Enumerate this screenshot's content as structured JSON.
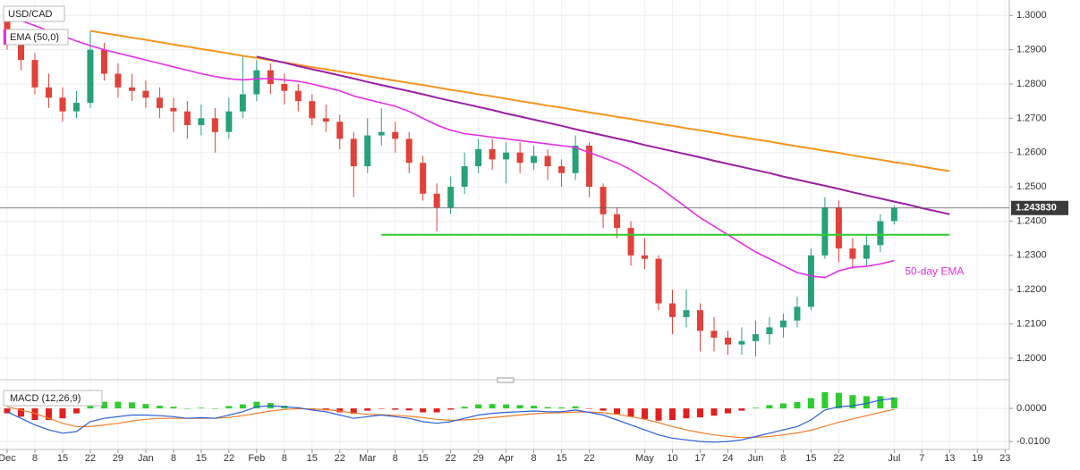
{
  "chart_data": {
    "type": "candlestick",
    "title": "USD/CAD",
    "categories": [
      "Dec",
      null,
      "8",
      null,
      "15",
      null,
      "22",
      null,
      "29",
      null,
      "Jan",
      null,
      "8",
      null,
      "15",
      null,
      "22",
      null,
      "Feb",
      null,
      "8",
      null,
      "15",
      null,
      "22",
      null,
      "Mar",
      null,
      "8",
      null,
      "15",
      null,
      "22",
      null,
      "29",
      null,
      "Apr",
      null,
      "8",
      null,
      "15",
      null,
      "22",
      null,
      null,
      null,
      "May",
      null,
      "10",
      null,
      "17",
      null,
      "24",
      null,
      "Jun",
      null,
      "8",
      null,
      "15",
      null,
      "22",
      null,
      null,
      null,
      "Jul",
      null,
      "7",
      null,
      "13",
      null,
      "19",
      null,
      "23",
      null
    ],
    "open": [
      1.299,
      1.292,
      1.287,
      1.279,
      1.276,
      1.272,
      1.2745,
      1.29,
      1.283,
      1.279,
      1.278,
      1.276,
      1.273,
      1.272,
      1.268,
      1.27,
      1.266,
      1.272,
      1.277,
      1.284,
      1.28,
      1.278,
      1.275,
      1.27,
      1.269,
      1.264,
      1.256,
      1.265,
      1.266,
      1.264,
      1.257,
      1.248,
      1.244,
      1.25,
      1.256,
      1.261,
      1.258,
      1.26,
      1.257,
      1.259,
      1.256,
      1.254,
      1.262,
      1.25,
      1.242,
      1.238,
      1.23,
      1.229,
      1.216,
      1.212,
      1.214,
      1.208,
      1.206,
      1.204,
      1.205,
      1.207,
      1.209,
      1.211,
      1.215,
      1.23,
      1.244,
      1.232,
      1.229,
      1.233,
      1.24,
      null,
      null,
      null,
      null,
      null,
      null,
      null,
      null,
      null
    ],
    "high": [
      1.3,
      1.296,
      1.289,
      1.283,
      1.279,
      1.278,
      1.2955,
      1.292,
      1.286,
      1.283,
      1.281,
      1.279,
      1.276,
      1.275,
      1.274,
      1.273,
      1.276,
      1.288,
      1.287,
      1.286,
      1.283,
      1.28,
      1.277,
      1.274,
      1.271,
      1.266,
      1.27,
      1.273,
      1.269,
      1.266,
      1.259,
      1.251,
      1.253,
      1.26,
      1.264,
      1.264,
      1.263,
      1.263,
      1.262,
      1.261,
      1.258,
      1.265,
      1.263,
      1.251,
      1.244,
      1.24,
      1.235,
      1.23,
      1.22,
      1.22,
      1.216,
      1.212,
      1.208,
      1.209,
      1.211,
      1.212,
      1.213,
      1.218,
      1.232,
      1.247,
      1.246,
      1.235,
      1.236,
      1.242,
      1.2445,
      null,
      null,
      null,
      null,
      null,
      null,
      null,
      null,
      null
    ],
    "low": [
      1.29,
      1.284,
      1.277,
      1.273,
      1.269,
      1.27,
      1.273,
      1.281,
      1.276,
      1.275,
      1.273,
      1.27,
      1.266,
      1.264,
      1.265,
      1.26,
      1.264,
      1.27,
      1.275,
      1.277,
      1.274,
      1.272,
      1.268,
      1.266,
      1.261,
      1.247,
      1.254,
      1.262,
      1.26,
      1.254,
      1.246,
      1.237,
      1.242,
      1.248,
      1.254,
      1.255,
      1.251,
      1.254,
      1.255,
      1.252,
      1.25,
      1.252,
      1.247,
      1.238,
      1.235,
      1.227,
      1.226,
      1.214,
      1.207,
      1.209,
      1.202,
      1.202,
      1.201,
      1.201,
      1.2005,
      1.204,
      1.206,
      1.209,
      1.214,
      1.229,
      1.228,
      1.226,
      1.227,
      1.231,
      1.239,
      null,
      null,
      null,
      null,
      null,
      null,
      null,
      null,
      null
    ],
    "close": [
      1.292,
      1.287,
      1.279,
      1.276,
      1.272,
      1.2745,
      1.29,
      1.283,
      1.279,
      1.278,
      1.276,
      1.273,
      1.272,
      1.268,
      1.27,
      1.266,
      1.272,
      1.277,
      1.284,
      1.28,
      1.278,
      1.275,
      1.27,
      1.269,
      1.264,
      1.256,
      1.265,
      1.266,
      1.264,
      1.257,
      1.248,
      1.244,
      1.25,
      1.256,
      1.261,
      1.258,
      1.26,
      1.257,
      1.259,
      1.256,
      1.254,
      1.262,
      1.25,
      1.242,
      1.238,
      1.23,
      1.229,
      1.216,
      1.212,
      1.214,
      1.208,
      1.206,
      1.204,
      1.205,
      1.207,
      1.209,
      1.211,
      1.215,
      1.23,
      1.244,
      1.232,
      1.229,
      1.233,
      1.24,
      1.24383,
      null,
      null,
      null,
      null,
      null,
      null,
      null,
      null,
      null
    ],
    "up_color": "#27a17b",
    "down_color": "#e0413a",
    "last_price_label": "1.243830",
    "ylim": [
      1.1945,
      1.3045
    ],
    "yticks": [
      {
        "value": 1.3,
        "label": "1.3000"
      },
      {
        "value": 1.29,
        "label": "1.2900"
      },
      {
        "value": 1.28,
        "label": "1.2800"
      },
      {
        "value": 1.27,
        "label": "1.2700"
      },
      {
        "value": 1.26,
        "label": "1.2600"
      },
      {
        "value": 1.25,
        "label": "1.2500"
      },
      {
        "value": 1.24,
        "label": "1.2400"
      },
      {
        "value": 1.23,
        "label": "1.2300"
      },
      {
        "value": 1.22,
        "label": "1.2200"
      },
      {
        "value": 1.21,
        "label": "1.2100"
      },
      {
        "value": 1.2,
        "label": "1.2000"
      }
    ],
    "grid": true,
    "series": [
      {
        "name": "EMA (50,0)",
        "color": "#e62ee6",
        "values": [
          1.3,
          1.2985,
          1.297,
          1.2955,
          1.294,
          1.2925,
          1.2912,
          1.29,
          1.289,
          1.288,
          1.287,
          1.286,
          1.285,
          1.284,
          1.283,
          1.2822,
          1.2815,
          1.2812,
          1.2815,
          1.2816,
          1.2812,
          1.2808,
          1.28,
          1.279,
          1.278,
          1.2765,
          1.2755,
          1.2745,
          1.2735,
          1.272,
          1.27,
          1.268,
          1.2665,
          1.2655,
          1.265,
          1.2645,
          1.264,
          1.2635,
          1.263,
          1.2625,
          1.262,
          1.2615,
          1.26,
          1.2585,
          1.257,
          1.255,
          1.2525,
          1.25,
          1.247,
          1.244,
          1.241,
          1.2385,
          1.236,
          1.2335,
          1.231,
          1.229,
          1.227,
          1.225,
          1.224,
          1.2235,
          1.2255,
          1.2265,
          1.2268,
          1.2275,
          1.2285,
          null,
          null,
          null,
          null,
          null,
          null,
          null,
          null,
          null
        ]
      }
    ],
    "annotation": "50-day EMA",
    "lines": [
      {
        "color": "#f7941d",
        "values": [
          null,
          null,
          null,
          null,
          null,
          null,
          1.2955,
          1.2948,
          1.2942,
          1.2935,
          1.2929,
          1.2922,
          1.2915,
          1.2909,
          1.2902,
          1.2896,
          1.2889,
          1.2882,
          1.2876,
          1.2869,
          1.2863,
          1.2856,
          1.2849,
          1.2843,
          1.2836,
          1.283,
          1.2823,
          1.2816,
          1.281,
          1.2803,
          1.2797,
          1.279,
          1.2783,
          1.2777,
          1.277,
          1.2764,
          1.2757,
          1.275,
          1.2744,
          1.2737,
          1.2731,
          1.2724,
          1.2717,
          1.2711,
          1.2704,
          1.2698,
          1.2691,
          1.2684,
          1.2678,
          1.2671,
          1.2665,
          1.2658,
          1.2651,
          1.2645,
          1.2638,
          1.2632,
          1.2625,
          1.2618,
          1.2612,
          1.2605,
          1.2599,
          1.2592,
          1.2585,
          1.2579,
          1.2572,
          1.2566,
          1.2559,
          1.2552,
          1.2546,
          null,
          null,
          null,
          null,
          null
        ]
      },
      {
        "color": "#9a1fa3",
        "values": [
          null,
          null,
          null,
          null,
          null,
          null,
          null,
          null,
          null,
          null,
          null,
          null,
          null,
          null,
          null,
          null,
          null,
          null,
          1.288,
          1.2871,
          1.2862,
          1.2852,
          1.2843,
          1.2834,
          1.2825,
          1.2816,
          1.2806,
          1.2797,
          1.2788,
          1.2779,
          1.277,
          1.276,
          1.2751,
          1.2742,
          1.2733,
          1.2724,
          1.2714,
          1.2705,
          1.2696,
          1.2687,
          1.2678,
          1.2668,
          1.2659,
          1.265,
          1.2641,
          1.2632,
          1.2622,
          1.2613,
          1.2604,
          1.2595,
          1.2586,
          1.2576,
          1.2567,
          1.2558,
          1.2549,
          1.254,
          1.253,
          1.2521,
          1.2512,
          1.2503,
          1.2494,
          1.2484,
          1.2475,
          1.2466,
          1.2457,
          1.2448,
          1.2438,
          1.2429,
          1.242,
          null,
          null,
          null,
          null,
          null
        ]
      },
      {
        "color": "#2ecc2e",
        "values": [
          null,
          null,
          null,
          null,
          null,
          null,
          null,
          null,
          null,
          null,
          null,
          null,
          null,
          null,
          null,
          null,
          null,
          null,
          null,
          null,
          null,
          null,
          null,
          null,
          null,
          null,
          null,
          1.236,
          1.236,
          1.236,
          1.236,
          1.236,
          1.236,
          1.236,
          1.236,
          1.236,
          1.236,
          1.236,
          1.236,
          1.236,
          1.236,
          1.236,
          1.236,
          1.236,
          1.236,
          1.236,
          1.236,
          1.236,
          1.236,
          1.236,
          1.236,
          1.236,
          1.236,
          1.236,
          1.236,
          1.236,
          1.236,
          1.236,
          1.236,
          1.236,
          1.236,
          1.236,
          1.236,
          1.236,
          1.236,
          1.236,
          1.236,
          1.236,
          1.236,
          null,
          null,
          null,
          null,
          null
        ]
      }
    ],
    "macd": {
      "title": "MACD (12,26,9)",
      "ylim": [
        -0.0124,
        0.0073
      ],
      "yticks": [
        {
          "value": 0,
          "label": "0.0000"
        },
        {
          "value": -0.01,
          "label": "-0.0100"
        }
      ],
      "macd": {
        "color": "#2a5fd6",
        "values": [
          -0.001,
          -0.003,
          -0.005,
          -0.0065,
          -0.0075,
          -0.007,
          -0.004,
          -0.003,
          -0.0025,
          -0.002,
          -0.002,
          -0.0022,
          -0.0025,
          -0.003,
          -0.0028,
          -0.003,
          -0.002,
          -0.001,
          0.0005,
          0.0008,
          0.0005,
          0.0002,
          -0.0005,
          -0.001,
          -0.002,
          -0.003,
          -0.0025,
          -0.002,
          -0.0025,
          -0.003,
          -0.004,
          -0.0045,
          -0.004,
          -0.003,
          -0.002,
          -0.0015,
          -0.0012,
          -0.001,
          -0.0008,
          -0.001,
          -0.001,
          -0.0005,
          -0.0012,
          -0.002,
          -0.0035,
          -0.005,
          -0.0065,
          -0.008,
          -0.009,
          -0.0095,
          -0.01,
          -0.0102,
          -0.01,
          -0.0095,
          -0.0085,
          -0.0075,
          -0.0065,
          -0.0055,
          -0.0035,
          -0.0005,
          0.0005,
          0.0008,
          0.0015,
          0.0025,
          0.003,
          null,
          null,
          null,
          null,
          null,
          null,
          null,
          null,
          null
        ]
      },
      "signal": {
        "color": "#f07f2a",
        "values": [
          0.0005,
          -0.0005,
          -0.0015,
          -0.003,
          -0.0045,
          -0.0055,
          -0.0055,
          -0.005,
          -0.0045,
          -0.0038,
          -0.0033,
          -0.003,
          -0.003,
          -0.003,
          -0.003,
          -0.003,
          -0.0027,
          -0.0022,
          -0.0015,
          -0.0008,
          -0.0003,
          -0.0001,
          -0.0002,
          -0.0004,
          -0.0008,
          -0.0014,
          -0.0018,
          -0.0019,
          -0.0021,
          -0.0024,
          -0.0028,
          -0.0033,
          -0.0036,
          -0.0035,
          -0.0032,
          -0.0028,
          -0.0024,
          -0.002,
          -0.0016,
          -0.0014,
          -0.0013,
          -0.0011,
          -0.0011,
          -0.0013,
          -0.0018,
          -0.0025,
          -0.0033,
          -0.0043,
          -0.0055,
          -0.0065,
          -0.0073,
          -0.008,
          -0.0085,
          -0.0088,
          -0.0087,
          -0.0085,
          -0.008,
          -0.0074,
          -0.0066,
          -0.0054,
          -0.0042,
          -0.0032,
          -0.0022,
          -0.0012,
          -0.0003,
          null,
          null,
          null,
          null,
          null,
          null,
          null,
          null,
          null
        ]
      },
      "histogram": {
        "up_color": "#2ecc2e",
        "down_color": "#e02020",
        "values": [
          -0.0015,
          -0.0025,
          -0.0035,
          -0.0035,
          -0.003,
          -0.0015,
          0.0015,
          0.002,
          0.002,
          0.0018,
          0.0013,
          0.0008,
          0.0005,
          0,
          0.0002,
          0,
          0.0007,
          0.0012,
          0.002,
          0.0016,
          0.0008,
          0.0003,
          -0.0003,
          -0.0006,
          -0.0012,
          -0.0016,
          -0.0007,
          -0.0001,
          -0.0004,
          -0.0006,
          -0.0012,
          -0.0012,
          -0.0004,
          0.0005,
          0.0012,
          0.0013,
          0.0012,
          0.001,
          0.0008,
          0.0004,
          0.0003,
          0.0006,
          -0.0001,
          -0.0007,
          -0.0017,
          -0.0025,
          -0.0032,
          -0.0037,
          -0.0035,
          -0.003,
          -0.0027,
          -0.0022,
          -0.0015,
          -0.0007,
          0.0002,
          0.001,
          0.0015,
          0.0019,
          0.0031,
          0.0049,
          0.0047,
          0.004,
          0.0037,
          0.0037,
          0.0033,
          null,
          null,
          null,
          null,
          null,
          null,
          null,
          null,
          null
        ]
      }
    }
  }
}
